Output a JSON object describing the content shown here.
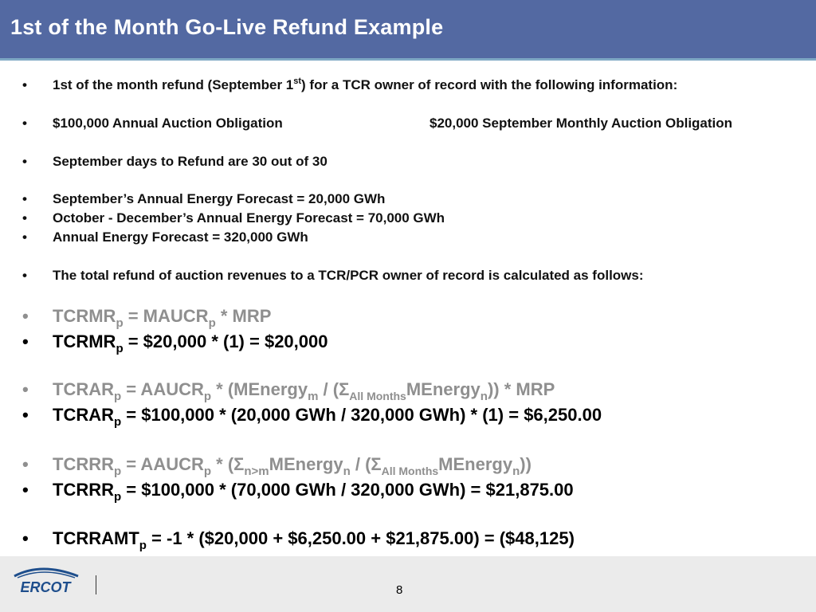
{
  "title": "1st of the Month Go-Live Refund Example",
  "bullet": "•",
  "lines": {
    "l1a": "1st of the month refund (September 1",
    "l1sup": "st",
    "l1b": ") for a TCR owner of record with the following information:",
    "l2a": "$100,000 Annual Auction Obligation",
    "l2b": "$20,000 September Monthly Auction Obligation",
    "l3": "September days to Refund are 30 out of 30",
    "l4": "September’s Annual Energy Forecast = 20,000 GWh",
    "l5": "October - December’s Annual Energy Forecast = 70,000 GWh",
    "l6": "Annual Energy Forecast = 320,000 GWh",
    "l7": "The total refund of auction revenues to a TCR/PCR owner of record is calculated as follows:"
  },
  "formulas": {
    "f1": {
      "a": "TCRMR",
      "sub_a": "p",
      "b": " = MAUCR",
      "sub_b": "p",
      "c": " * MRP"
    },
    "f2": {
      "a": "TCRMR",
      "sub_a": "p",
      "b": " = $20,000 * (1) = $20,000"
    },
    "f3": {
      "a": "TCRAR",
      "sub_a": "p",
      "b": " = AAUCR",
      "sub_b": "p",
      "c": " * (MEnergy",
      "sub_c": "m",
      "d": " / (Σ",
      "sub_d": "All Months",
      "e": "MEnergy",
      "sub_e": "n",
      "f": ")) * MRP"
    },
    "f4": {
      "a": "TCRAR",
      "sub_a": "p",
      "b": " = $100,000 * (20,000 GWh / 320,000 GWh) * (1) = $6,250.00"
    },
    "f5": {
      "a": "TCRRR",
      "sub_a": "p",
      "b": " = AAUCR",
      "sub_b": "p",
      "c": " * (Σ",
      "sub_c": "n>m",
      "d": "MEnergy",
      "sub_d": "n",
      "e": " / (Σ",
      "sub_e": "All Months",
      "f": "MEnergy",
      "sub_f": "n",
      "g": "))"
    },
    "f6": {
      "a": "TCRRR",
      "sub_a": "p",
      "b": " = $100,000 * (70,000 GWh  / 320,000 GWh) = $21,875.00"
    },
    "f7": {
      "a": "TCRRAMT",
      "sub_a": "p",
      "b": " = -1 * ($20,000 + $6,250.00 + $21,875.00) = ($48,125)"
    }
  },
  "footer": {
    "logo_text": "ERCOT",
    "page_number": "8"
  },
  "colors": {
    "title_bar": "#5369a2",
    "title_rule": "#7ea8c4",
    "formula_gray": "#8f8f8f",
    "logo_blue": "#1e4e8c",
    "footer_bg": "#ebebeb"
  }
}
